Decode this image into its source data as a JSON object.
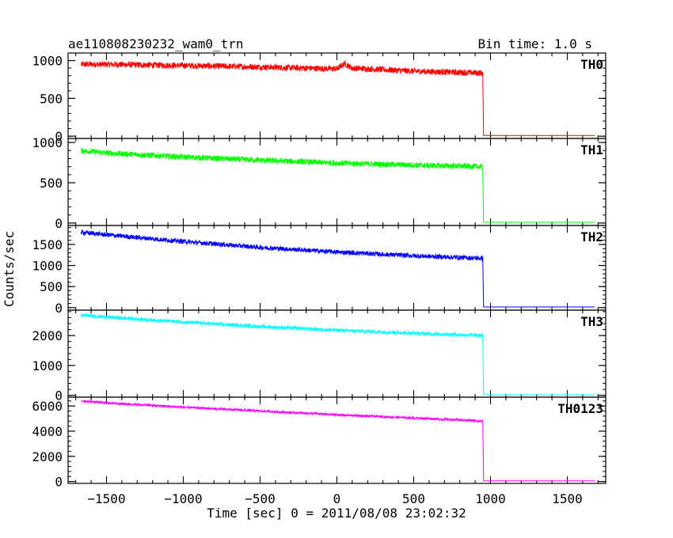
{
  "header": {
    "title": "ae110808230232_wam0_trn",
    "bin_time": "Bin time: 1.0 s"
  },
  "chart_data": {
    "type": "line",
    "title": "ae110808230232_wam0_trn",
    "subtitle": "Bin time: 1.0 s",
    "xlabel": "Time [sec] 0 = 2011/08/08 23:02:32",
    "ylabel": "Counts/sec",
    "xlim": [
      -1750,
      1750
    ],
    "x_ticks": [
      -1500,
      -1000,
      -500,
      0,
      500,
      1000,
      1500
    ],
    "x_tick_labels": [
      "−1500",
      "−1000",
      "−500",
      "0",
      "500",
      "1000",
      "1500"
    ],
    "grid": false,
    "panels": [
      {
        "name": "TH0",
        "color": "#ff0000",
        "ylim": [
          -30,
          1100
        ],
        "y_ticks": [
          0,
          500,
          1000
        ],
        "y_tick_labels": [
          "0",
          "500",
          "1000"
        ],
        "x": [
          -1665,
          -1500,
          -1000,
          -500,
          0,
          50,
          100,
          500,
          950,
          955,
          1680
        ],
        "values": [
          950,
          950,
          935,
          915,
          890,
          960,
          900,
          860,
          835,
          10,
          10
        ],
        "noise": 40
      },
      {
        "name": "TH1",
        "color": "#00ff00",
        "ylim": [
          -30,
          1050
        ],
        "y_ticks": [
          0,
          500,
          1000
        ],
        "y_tick_labels": [
          "0",
          "500",
          "1000"
        ],
        "x": [
          -1665,
          -1500,
          -1000,
          -500,
          0,
          500,
          950,
          955,
          1680
        ],
        "values": [
          900,
          870,
          820,
          780,
          745,
          720,
          700,
          10,
          10
        ],
        "noise": 35
      },
      {
        "name": "TH2",
        "color": "#0000ff",
        "ylim": [
          -60,
          1950
        ],
        "y_ticks": [
          0,
          500,
          1000,
          1500
        ],
        "y_tick_labels": [
          "0",
          "500",
          "1000",
          "1500"
        ],
        "x": [
          -1665,
          -1500,
          -1000,
          -500,
          0,
          500,
          950,
          955,
          1680
        ],
        "values": [
          1790,
          1730,
          1570,
          1430,
          1320,
          1230,
          1170,
          15,
          15
        ],
        "noise": 55
      },
      {
        "name": "TH3",
        "color": "#00ffff",
        "ylim": [
          -60,
          2850
        ],
        "y_ticks": [
          0,
          1000,
          2000
        ],
        "y_tick_labels": [
          "0",
          "1000",
          "2000"
        ],
        "x": [
          -1665,
          -1500,
          -1000,
          -500,
          0,
          500,
          950,
          955,
          1680
        ],
        "values": [
          2680,
          2620,
          2450,
          2300,
          2180,
          2080,
          2000,
          20,
          20
        ],
        "noise": 60
      },
      {
        "name": "TH0123",
        "color": "#ff00ff",
        "ylim": [
          -150,
          6700
        ],
        "y_ticks": [
          0,
          2000,
          4000,
          6000
        ],
        "y_tick_labels": [
          "0",
          "2000",
          "4000",
          "6000"
        ],
        "x": [
          -1665,
          -1500,
          -1000,
          -500,
          0,
          500,
          950,
          955,
          1680
        ],
        "values": [
          6400,
          6250,
          5900,
          5600,
          5300,
          5050,
          4800,
          60,
          60
        ],
        "noise": 90
      }
    ]
  }
}
